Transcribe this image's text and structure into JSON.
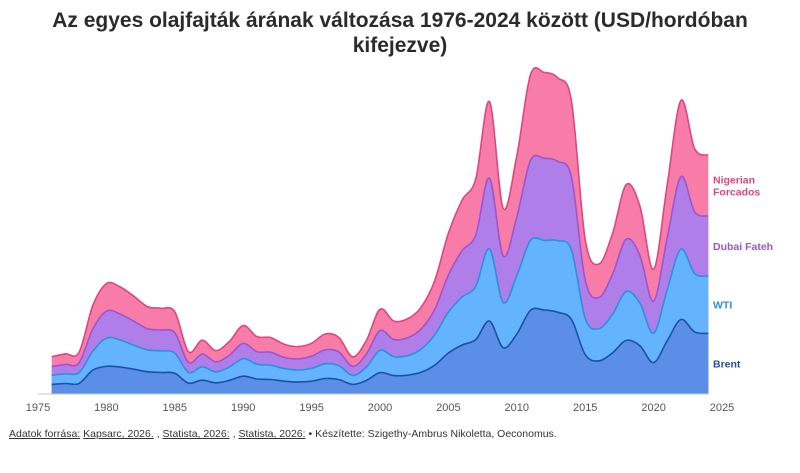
{
  "chart_data": {
    "type": "area",
    "stacked": true,
    "title_line1": "Az egyes olajfajták árának változása 1976-2024 között (USD/hordóban",
    "title_line2": "kifejezve)",
    "xlabel": "",
    "ylabel": "",
    "xlim": [
      1975,
      2025
    ],
    "ylim": [
      0,
      420
    ],
    "xticks": [
      "1975",
      "1980",
      "1985",
      "1990",
      "1995",
      "2000",
      "2005",
      "2010",
      "2015",
      "2020",
      "2025"
    ],
    "grid": false,
    "legend_placement": "right, inline labels",
    "x": [
      1976,
      1977,
      1978,
      1979,
      1980,
      1981,
      1982,
      1983,
      1984,
      1985,
      1986,
      1987,
      1988,
      1989,
      1990,
      1991,
      1992,
      1993,
      1994,
      1995,
      1996,
      1997,
      1998,
      1999,
      2000,
      2001,
      2002,
      2003,
      2004,
      2005,
      2006,
      2007,
      2008,
      2009,
      2010,
      2011,
      2012,
      2013,
      2014,
      2015,
      2016,
      2017,
      2018,
      2019,
      2020,
      2021,
      2022,
      2023,
      2024
    ],
    "series": [
      {
        "name": "Brent",
        "color": "#5b8ee6",
        "label_color": "#1f4fa8",
        "values": [
          12.8,
          13.9,
          14.0,
          31.6,
          36.8,
          35.9,
          32.9,
          29.6,
          28.6,
          27.5,
          14.4,
          18.4,
          14.9,
          18.2,
          23.7,
          20.0,
          19.3,
          17.0,
          15.8,
          17.0,
          20.6,
          19.1,
          12.8,
          17.9,
          28.5,
          24.4,
          25.0,
          28.8,
          38.3,
          54.5,
          65.1,
          72.4,
          97.0,
          61.7,
          79.6,
          111.3,
          111.6,
          108.6,
          98.9,
          52.4,
          44.0,
          54.8,
          71.3,
          64.2,
          41.8,
          70.9,
          99.0,
          82.5,
          80.5
        ]
      },
      {
        "name": "WTI",
        "color": "#63b3ff",
        "label_color": "#2e8fe0",
        "values": [
          12.2,
          13.0,
          14.5,
          25.1,
          37.4,
          36.0,
          32.0,
          29.1,
          28.8,
          26.9,
          14.4,
          17.8,
          14.5,
          17.9,
          23.2,
          19.6,
          19.0,
          16.7,
          16.1,
          17.0,
          19.7,
          18.5,
          11.9,
          17.8,
          29.5,
          25.3,
          25.9,
          30.7,
          40.4,
          54.4,
          63.9,
          70.7,
          96.0,
          60.1,
          77.7,
          93.0,
          92.6,
          95.1,
          92.4,
          48.1,
          42.8,
          51.3,
          64.9,
          56.5,
          39.2,
          68.0,
          93.5,
          77.6,
          76.5
        ]
      },
      {
        "name": "Dubai Fateh",
        "color": "#b07ee8",
        "label_color": "#9b55d0",
        "values": [
          11.6,
          12.4,
          12.8,
          29.3,
          35.9,
          34.3,
          31.8,
          28.1,
          27.5,
          27.0,
          13.1,
          16.9,
          13.3,
          15.6,
          20.4,
          16.6,
          17.2,
          14.9,
          14.8,
          16.1,
          18.5,
          18.1,
          12.1,
          17.3,
          26.2,
          22.8,
          23.7,
          26.8,
          33.6,
          49.3,
          61.5,
          68.4,
          93.8,
          61.8,
          78.1,
          106.2,
          109.1,
          105.4,
          96.6,
          50.8,
          41.4,
          53.1,
          69.5,
          63.5,
          42.3,
          69.2,
          96.3,
          82.1,
          79.5
        ]
      },
      {
        "name": "Nigerian\nForcados",
        "color": "#f87ca8",
        "label_color": "#e0457f",
        "values": [
          12.9,
          14.1,
          14.0,
          31.3,
          36.6,
          36.2,
          33.3,
          29.3,
          28.9,
          27.8,
          14.2,
          18.4,
          15.0,
          18.4,
          23.7,
          20.1,
          19.6,
          17.4,
          16.3,
          17.3,
          21.0,
          19.3,
          12.6,
          18.0,
          28.4,
          24.5,
          25.2,
          28.8,
          38.3,
          55.4,
          67.1,
          74.5,
          101.8,
          63.4,
          81.1,
          113.7,
          114.2,
          111.0,
          100.9,
          53.9,
          44.5,
          54.3,
          72.6,
          65.5,
          42.5,
          70.8,
          101.4,
          83.9,
          80.9
        ]
      }
    ]
  },
  "footer": {
    "source_label": "Adatok forrása:",
    "sources": [
      "Kapsarc, 2026.",
      "Statista, 2026:",
      "Statista, 2026:"
    ],
    "author": "• Készítette: Szigethy-Ambrus Nikoletta, Oeconomus."
  }
}
